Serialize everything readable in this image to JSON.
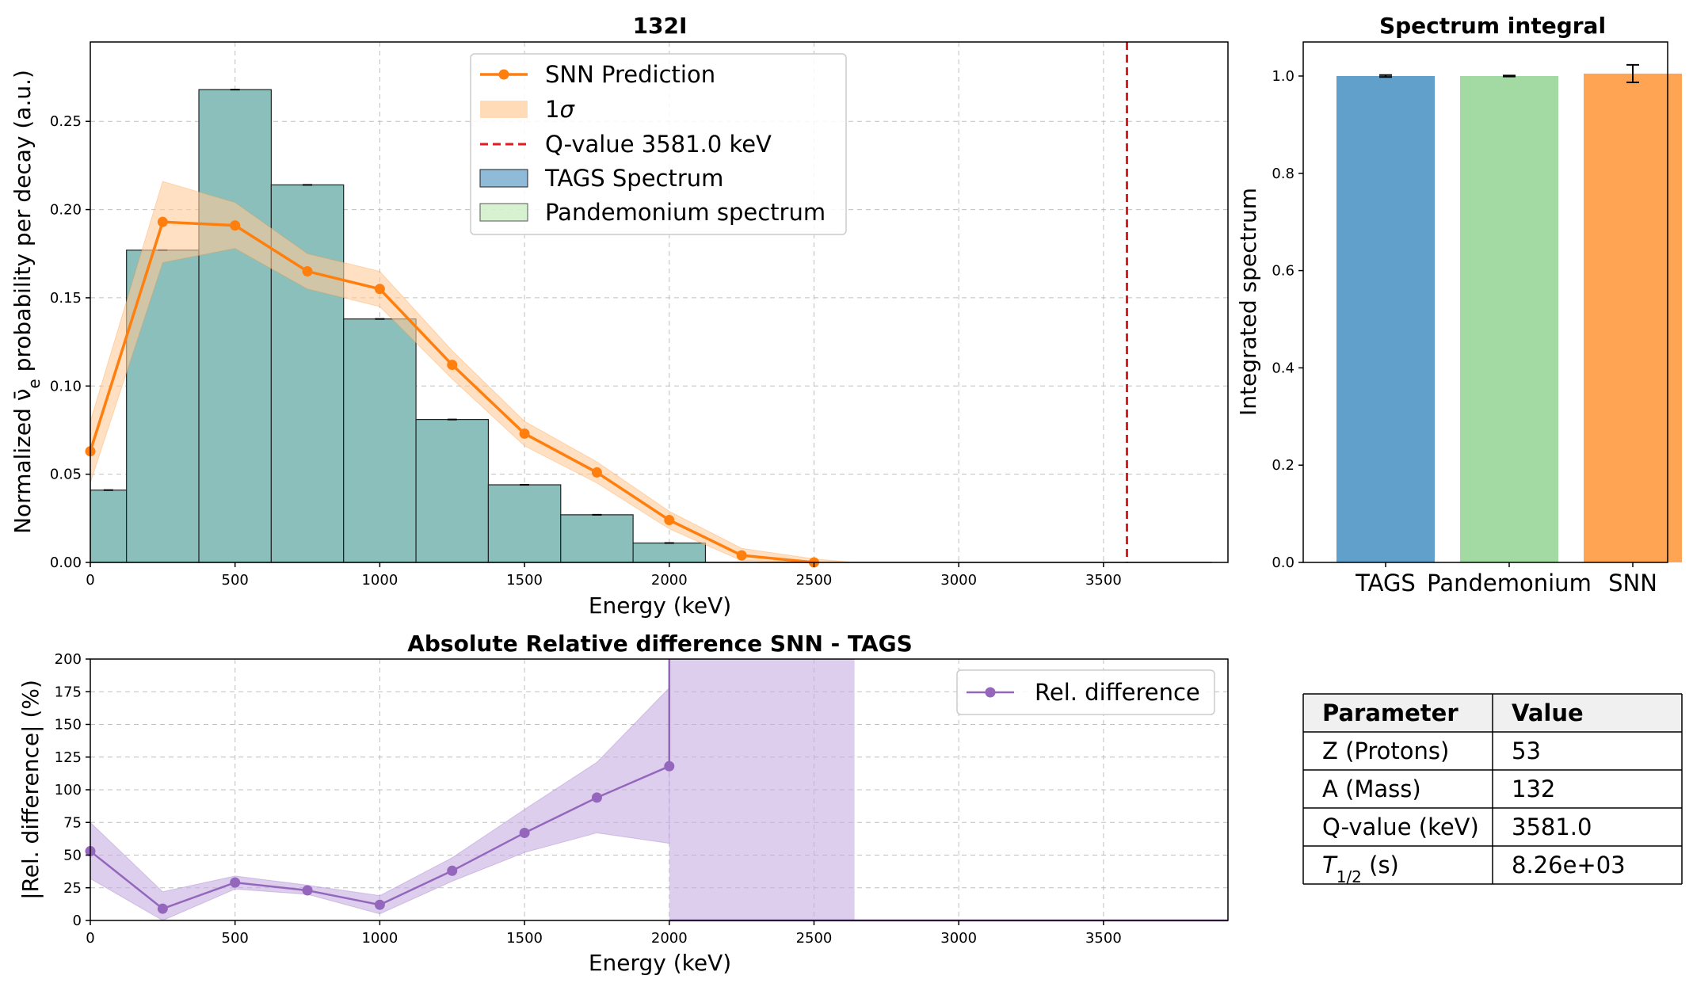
{
  "chart_data": [
    {
      "id": "main",
      "type": "bar",
      "title": "132I",
      "xlabel": "Energy (keV)",
      "ylabel": "Normalized ν̄e probability per decay (a.u.)",
      "xlim": [
        0,
        3930
      ],
      "ylim": [
        0,
        0.295
      ],
      "xticks": [
        0,
        500,
        1000,
        1500,
        2000,
        2500,
        3000,
        3500
      ],
      "yticks": [
        0.0,
        0.05,
        0.1,
        0.15,
        0.2,
        0.25
      ],
      "grid": true,
      "legend_position": "top-center",
      "colors": {
        "tags": "#1f77b4",
        "pandemonium": "#98df8a",
        "blend": "#8bbfbc",
        "snn": "#ff7f0e",
        "band": "#ffcc99",
        "qvalue": "#e41a1c"
      },
      "legend": [
        "SNN Prediction",
        "1σ",
        "Q-value 3581.0 keV",
        "TAGS Spectrum",
        "Pandemonium spectrum"
      ],
      "q_value": 3581.0,
      "bins": [
        {
          "x0": 0,
          "x1": 125,
          "value": 0.041
        },
        {
          "x0": 125,
          "x1": 375,
          "value": 0.177
        },
        {
          "x0": 375,
          "x1": 625,
          "value": 0.268
        },
        {
          "x0": 625,
          "x1": 875,
          "value": 0.214
        },
        {
          "x0": 875,
          "x1": 1125,
          "value": 0.138
        },
        {
          "x0": 1125,
          "x1": 1375,
          "value": 0.081
        },
        {
          "x0": 1375,
          "x1": 1625,
          "value": 0.044
        },
        {
          "x0": 1625,
          "x1": 1875,
          "value": 0.027
        },
        {
          "x0": 1875,
          "x1": 2125,
          "value": 0.011
        },
        {
          "x0": 2125,
          "x1": 2375,
          "value": 0.0
        },
        {
          "x0": 2375,
          "x1": 2625,
          "value": 0.0
        },
        {
          "x0": 2625,
          "x1": 2875,
          "value": 0.0
        },
        {
          "x0": 2875,
          "x1": 3125,
          "value": 0.0
        },
        {
          "x0": 3125,
          "x1": 3375,
          "value": 0.0
        },
        {
          "x0": 3375,
          "x1": 3625,
          "value": 0.0
        },
        {
          "x0": 3625,
          "x1": 3875,
          "value": 0.0
        }
      ],
      "snn": {
        "x": [
          0,
          250,
          500,
          750,
          1000,
          1250,
          1500,
          1750,
          2000,
          2250,
          2500
        ],
        "y": [
          0.063,
          0.193,
          0.191,
          0.165,
          0.155,
          0.112,
          0.073,
          0.051,
          0.024,
          0.004,
          0.0
        ],
        "lower": [
          0.045,
          0.17,
          0.178,
          0.155,
          0.145,
          0.104,
          0.066,
          0.045,
          0.019,
          0.001,
          0.0
        ],
        "upper": [
          0.08,
          0.216,
          0.204,
          0.175,
          0.165,
          0.12,
          0.08,
          0.057,
          0.029,
          0.008,
          0.002
        ],
        "band_end_x": 2640
      }
    },
    {
      "id": "integral",
      "type": "bar",
      "title": "Spectrum integral",
      "xlabel": "",
      "ylabel": "Integrated spectrum",
      "ylim": [
        0,
        1.07
      ],
      "yticks": [
        0.0,
        0.2,
        0.4,
        0.6,
        0.8,
        1.0
      ],
      "categories": [
        "TAGS",
        "Pandemonium",
        "SNN"
      ],
      "values": [
        1.0,
        1.0,
        1.005
      ],
      "errors": [
        0.002,
        0.001,
        0.018
      ],
      "colors": [
        "#60a0cb",
        "#a3d9a2",
        "#ffa453"
      ]
    },
    {
      "id": "reldiff",
      "type": "line",
      "title": "Absolute Relative difference SNN - TAGS",
      "xlabel": "Energy (keV)",
      "ylabel": "|Rel. difference| (%)",
      "xlim": [
        0,
        3930
      ],
      "ylim": [
        0,
        200
      ],
      "xticks": [
        0,
        500,
        1000,
        1500,
        2000,
        2500,
        3000,
        3500
      ],
      "yticks": [
        0,
        25,
        50,
        75,
        100,
        125,
        150,
        175,
        200
      ],
      "grid": true,
      "legend_position": "top-right",
      "legend": [
        "Rel. difference"
      ],
      "color": "#9467bd",
      "band_color": "#c5aee0",
      "x": [
        0,
        250,
        500,
        750,
        1000,
        1250,
        1500,
        1750,
        2000
      ],
      "y": [
        53,
        9,
        29,
        23,
        12,
        38,
        67,
        94,
        118
      ],
      "lower": [
        32,
        0,
        24,
        20,
        5,
        30,
        52,
        67,
        59
      ],
      "upper": [
        75,
        22,
        34,
        27,
        19,
        48,
        85,
        121,
        178
      ],
      "band_block": {
        "x0": 2000,
        "x1": 2640
      }
    }
  ],
  "table": {
    "headers": [
      "Parameter",
      "Value"
    ],
    "rows": [
      {
        "label": "Z (Protons)",
        "value": "53"
      },
      {
        "label": "A (Mass)",
        "value": "132"
      },
      {
        "label": "Q-value (keV)",
        "value": "3581.0"
      },
      {
        "label": "T",
        "sub": "1/2",
        "tail": " (s)",
        "value": "8.26e+03"
      }
    ]
  }
}
